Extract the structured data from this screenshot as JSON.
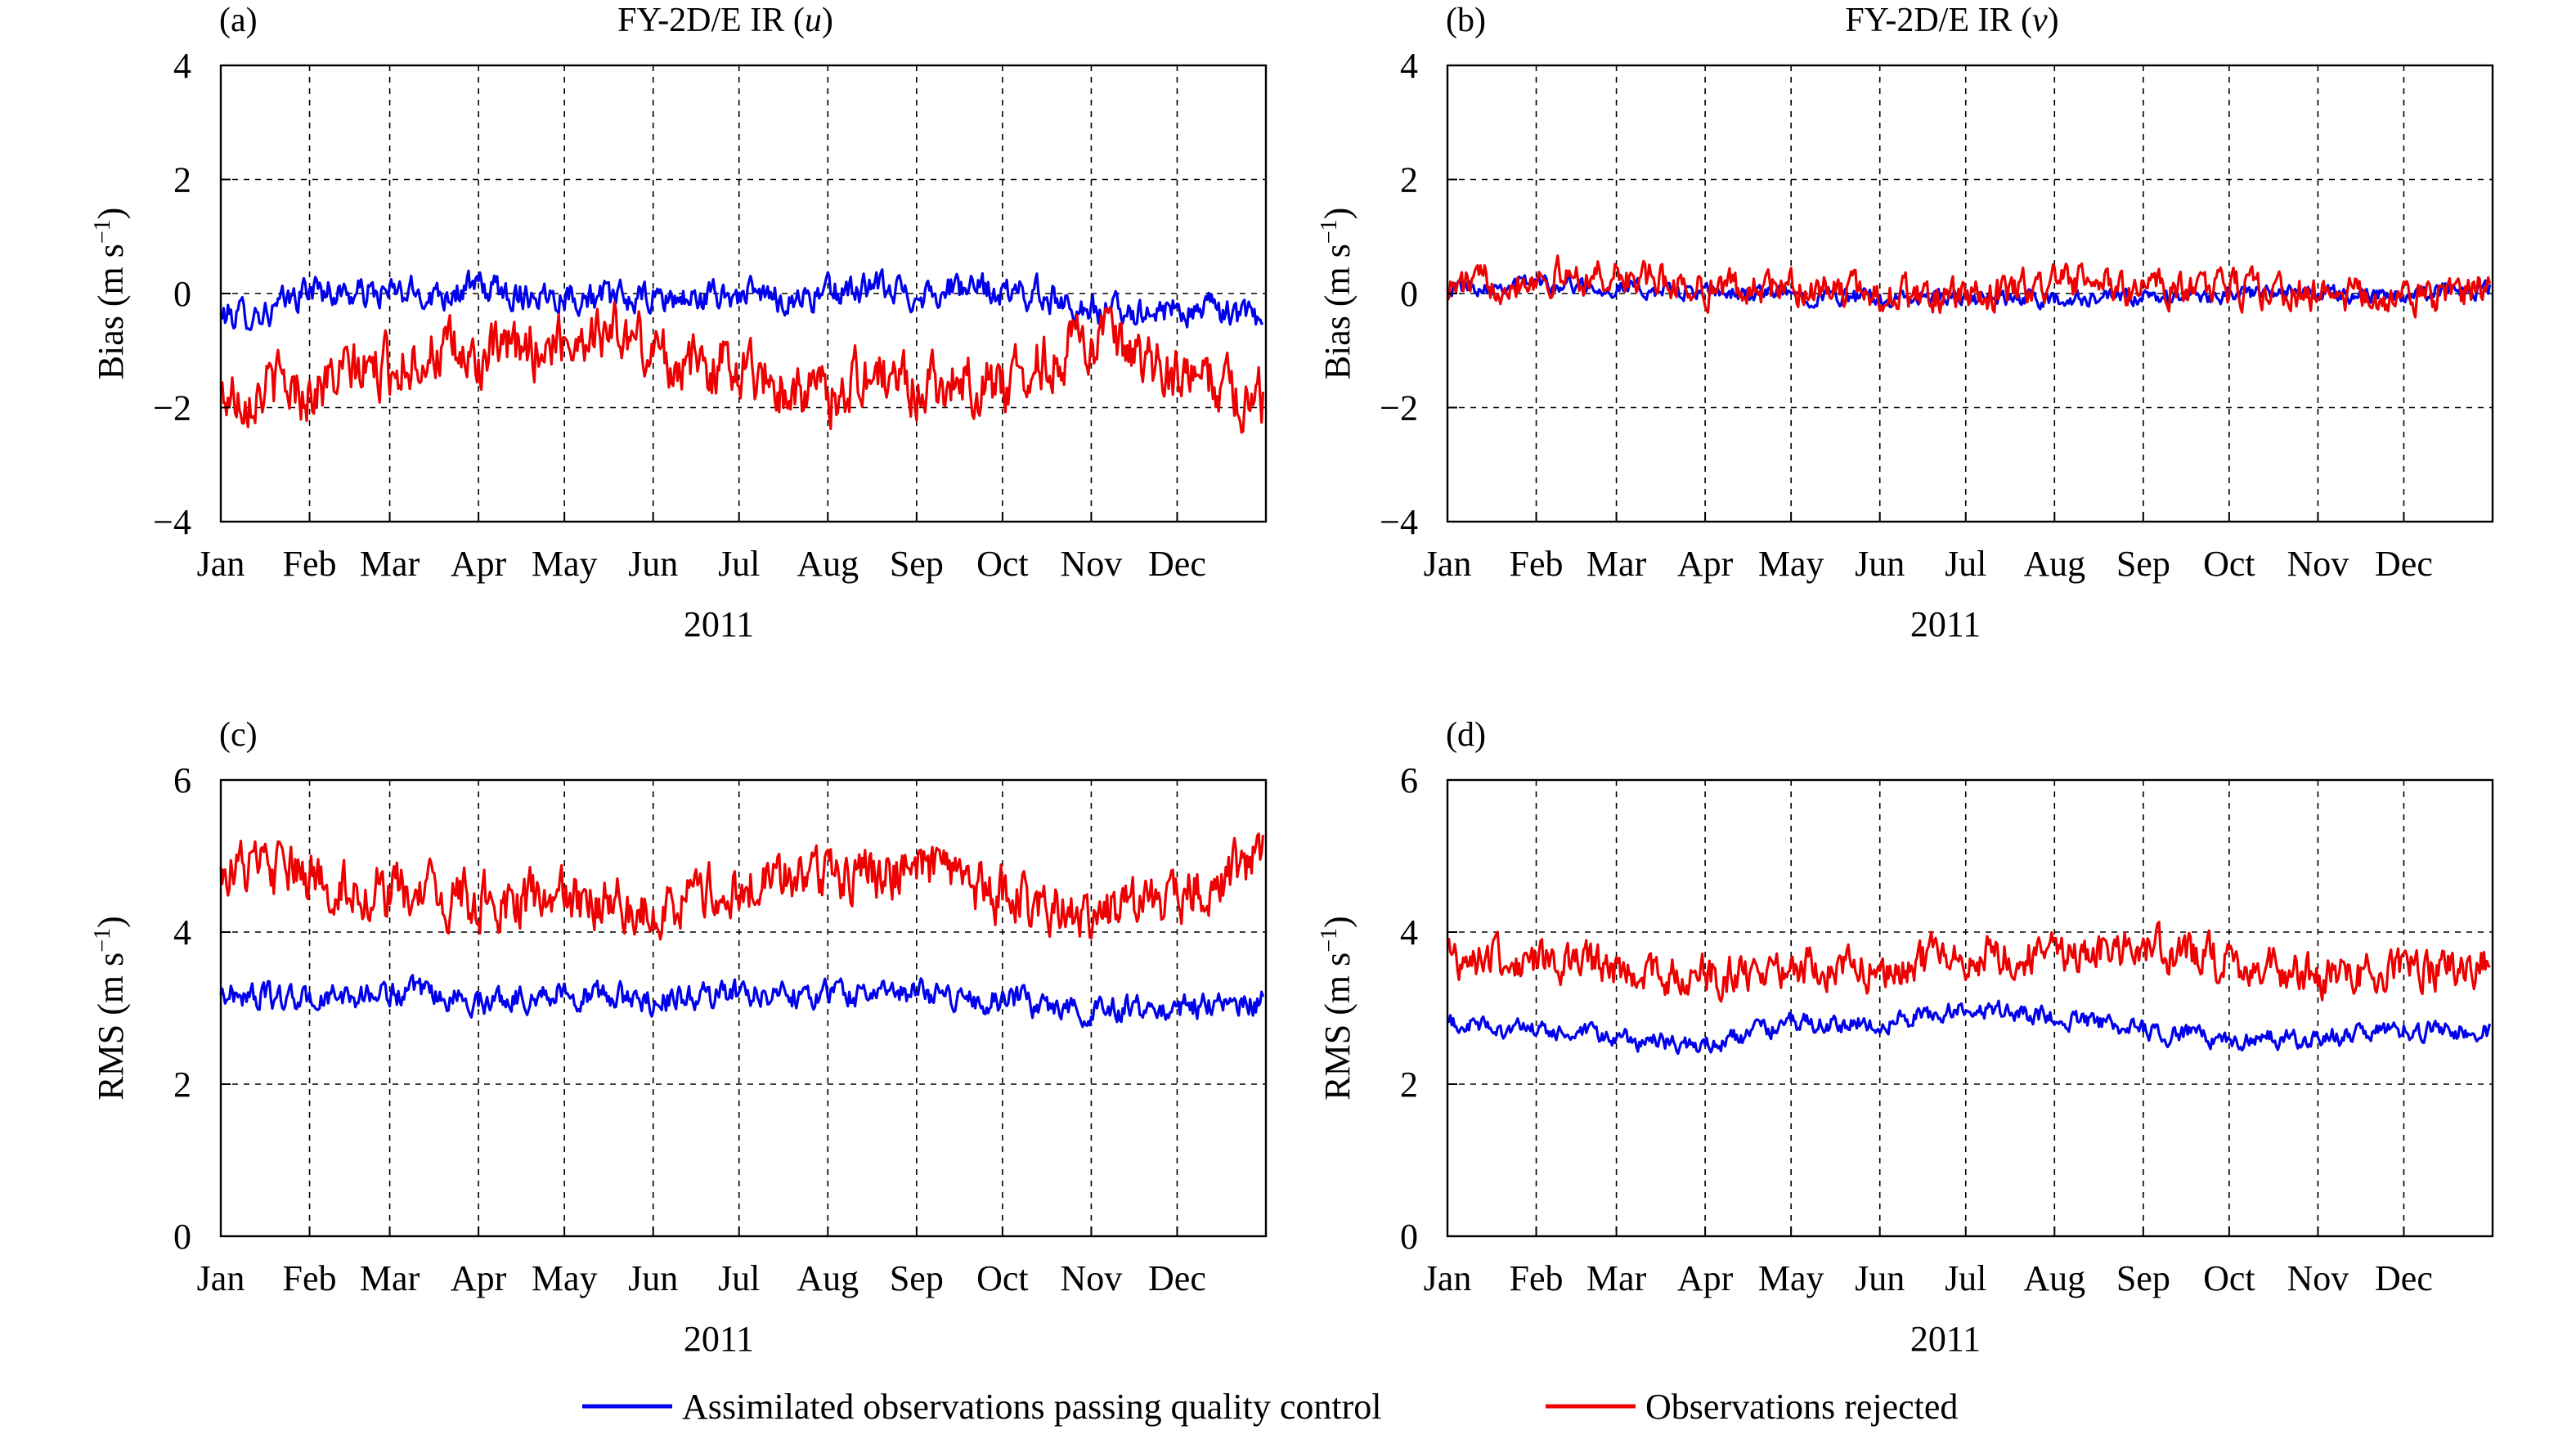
{
  "colors": {
    "assimilated": "#0000ee",
    "rejected": "#ee0000",
    "axis": "#000000",
    "grid": "#000000"
  },
  "legend": {
    "assimilated_label": "Assimilated observations passing quality control",
    "rejected_label": "Observations rejected"
  },
  "chart_data": [
    {
      "panel": "(a)",
      "title_prefix": "FY-2D/E IR (",
      "title_var": "u",
      "title_suffix": ")",
      "type": "line",
      "ylabel": "Bias (m s",
      "ylabel_sup": "−1",
      "ylabel_end": ")",
      "xlabel": "2011",
      "xticks": [
        "Jan",
        "Feb",
        "Mar",
        "Apr",
        "May",
        "Jun",
        "Jul",
        "Aug",
        "Sep",
        "Oct",
        "Nov",
        "Dec"
      ],
      "ylim": [
        -4,
        4
      ],
      "yticks": [
        "−4",
        "−2",
        "0",
        "2",
        "4"
      ],
      "grid": true,
      "series": [
        {
          "name": "Assimilated observations passing quality control",
          "color": "#0000ee",
          "x": [
            "Jan 1",
            "Jan 20",
            "Feb 1",
            "Feb 15",
            "Mar 1",
            "Mar 15",
            "Apr 1",
            "Apr 15",
            "May 1",
            "May 15",
            "Jun 1",
            "Jun 15",
            "Jul 1",
            "Jul 15",
            "Aug 1",
            "Aug 15",
            "Sep 1",
            "Sep 15",
            "Oct 1",
            "Oct 15",
            "Nov 1",
            "Nov 15",
            "Dec 1",
            "Dec 15",
            "Dec 31"
          ],
          "values": [
            -0.4,
            -0.3,
            0.1,
            0.0,
            0.0,
            0.0,
            0.1,
            0.0,
            0.0,
            -0.1,
            -0.1,
            -0.1,
            0.0,
            -0.1,
            0.0,
            0.1,
            0.0,
            0.1,
            0.0,
            0.0,
            -0.3,
            -0.3,
            -0.3,
            -0.3,
            -0.5
          ],
          "noise": 0.22
        },
        {
          "name": "Observations rejected",
          "color": "#ee0000",
          "x": [
            "Jan 1",
            "Jan 20",
            "Feb 1",
            "Feb 15",
            "Mar 1",
            "Mar 15",
            "Apr 1",
            "Apr 15",
            "May 1",
            "May 15",
            "Jun 1",
            "Jun 15",
            "Jul 1",
            "Jul 15",
            "Aug 1",
            "Aug 15",
            "Sep 1",
            "Sep 15",
            "Oct 1",
            "Oct 15",
            "Nov 1",
            "Nov 15",
            "Dec 1",
            "Dec 15",
            "Dec 31"
          ],
          "values": [
            -1.8,
            -1.6,
            -1.7,
            -1.4,
            -1.3,
            -1.0,
            -1.2,
            -1.0,
            -0.8,
            -0.6,
            -1.0,
            -1.3,
            -1.2,
            -1.6,
            -1.8,
            -1.4,
            -1.6,
            -1.5,
            -1.6,
            -1.2,
            -0.7,
            -1.2,
            -1.5,
            -1.6,
            -1.9
          ],
          "noise": 0.42
        }
      ]
    },
    {
      "panel": "(b)",
      "title_prefix": "FY-2D/E IR (",
      "title_var": "v",
      "title_suffix": ")",
      "type": "line",
      "ylabel": "Bias (m s",
      "ylabel_sup": "−1",
      "ylabel_end": ")",
      "xlabel": "2011",
      "xticks": [
        "Jan",
        "Feb",
        "Mar",
        "Apr",
        "May",
        "Jun",
        "Jul",
        "Aug",
        "Sep",
        "Oct",
        "Nov",
        "Dec"
      ],
      "ylim": [
        -4,
        4
      ],
      "yticks": [
        "−4",
        "−2",
        "0",
        "2",
        "4"
      ],
      "grid": true,
      "series": [
        {
          "name": "Assimilated observations passing quality control",
          "color": "#0000ee",
          "x": [
            "Jan 1",
            "Feb 1",
            "Mar 1",
            "Apr 1",
            "May 1",
            "Jun 1",
            "Jul 1",
            "Aug 1",
            "Sep 1",
            "Oct 1",
            "Nov 1",
            "Dec 1",
            "Dec 31"
          ],
          "values": [
            0.1,
            0.2,
            0.1,
            0.0,
            0.0,
            -0.1,
            -0.1,
            -0.1,
            -0.1,
            0.0,
            0.0,
            0.0,
            0.1
          ],
          "noise": 0.12
        },
        {
          "name": "Observations rejected",
          "color": "#ee0000",
          "x": [
            "Jan 1",
            "Feb 1",
            "Mar 1",
            "Apr 1",
            "May 1",
            "Jun 1",
            "Jul 1",
            "Aug 1",
            "Sep 1",
            "Oct 1",
            "Nov 1",
            "Dec 1",
            "Dec 31"
          ],
          "values": [
            0.1,
            0.3,
            0.3,
            0.1,
            0.1,
            0.0,
            -0.1,
            0.2,
            0.1,
            0.1,
            0.0,
            -0.1,
            0.1
          ],
          "noise": 0.24
        }
      ]
    },
    {
      "panel": "(c)",
      "title_prefix": "",
      "title_var": "",
      "title_suffix": "",
      "type": "line",
      "ylabel": "RMS (m s",
      "ylabel_sup": "−1",
      "ylabel_end": ")",
      "xlabel": "2011",
      "xticks": [
        "Jan",
        "Feb",
        "Mar",
        "Apr",
        "May",
        "Jun",
        "Jul",
        "Aug",
        "Sep",
        "Oct",
        "Nov",
        "Dec"
      ],
      "ylim": [
        0,
        6
      ],
      "yticks": [
        "0",
        "2",
        "4",
        "6"
      ],
      "grid": true,
      "series": [
        {
          "name": "Assimilated observations passing quality control",
          "color": "#0000ee",
          "x": [
            "Jan 1",
            "Feb 1",
            "Mar 1",
            "Apr 1",
            "May 1",
            "Jun 1",
            "Jul 1",
            "Aug 1",
            "Sep 1",
            "Oct 1",
            "Nov 1",
            "Dec 1",
            "Dec 31"
          ],
          "values": [
            3.2,
            3.1,
            3.2,
            3.1,
            3.2,
            3.1,
            3.2,
            3.2,
            3.2,
            3.1,
            3.0,
            3.0,
            3.1
          ],
          "noise": 0.14
        },
        {
          "name": "Observations rejected",
          "color": "#ee0000",
          "x": [
            "Jan 1",
            "Feb 1",
            "Mar 1",
            "Apr 1",
            "May 1",
            "Jun 1",
            "Jul 1",
            "Aug 1",
            "Sep 1",
            "Oct 1",
            "Nov 1",
            "Dec 1",
            "Dec 31"
          ],
          "values": [
            4.9,
            4.7,
            4.5,
            4.4,
            4.4,
            4.3,
            4.6,
            4.8,
            4.8,
            4.5,
            4.2,
            4.5,
            5.0
          ],
          "noise": 0.3
        }
      ]
    },
    {
      "panel": "(d)",
      "title_prefix": "",
      "title_var": "",
      "title_suffix": "",
      "type": "line",
      "ylabel": "RMS (m s",
      "ylabel_sup": "−1",
      "ylabel_end": ")",
      "xlabel": "2011",
      "xticks": [
        "Jan",
        "Feb",
        "Mar",
        "Apr",
        "May",
        "Jun",
        "Jul",
        "Aug",
        "Sep",
        "Oct",
        "Nov",
        "Dec"
      ],
      "ylim": [
        0,
        6
      ],
      "yticks": [
        "0",
        "2",
        "4",
        "6"
      ],
      "grid": true,
      "series": [
        {
          "name": "Assimilated observations passing quality control",
          "color": "#0000ee",
          "x": [
            "Jan 1",
            "Feb 1",
            "Mar 1",
            "Apr 1",
            "May 1",
            "Jun 1",
            "Jul 1",
            "Aug 1",
            "Sep 1",
            "Oct 1",
            "Nov 1",
            "Dec 1",
            "Dec 31"
          ],
          "values": [
            2.8,
            2.7,
            2.6,
            2.5,
            2.8,
            2.8,
            3.0,
            2.9,
            2.7,
            2.6,
            2.6,
            2.7,
            2.7
          ],
          "noise": 0.1
        },
        {
          "name": "Observations rejected",
          "color": "#ee0000",
          "x": [
            "Jan 1",
            "Feb 1",
            "Mar 1",
            "Apr 1",
            "May 1",
            "Jun 1",
            "Jul 1",
            "Aug 1",
            "Sep 1",
            "Oct 1",
            "Nov 1",
            "Dec 1",
            "Dec 31"
          ],
          "values": [
            3.7,
            3.6,
            3.5,
            3.4,
            3.6,
            3.5,
            3.7,
            3.7,
            3.8,
            3.6,
            3.4,
            3.5,
            3.6
          ],
          "noise": 0.22
        }
      ]
    }
  ]
}
